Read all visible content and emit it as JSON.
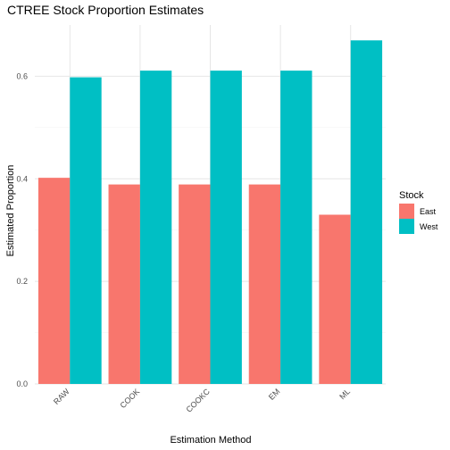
{
  "chart_data": {
    "type": "bar",
    "title": "CTREE Stock Proportion Estimates",
    "xlabel": "Estimation Method",
    "ylabel": "Estimated Proportion",
    "categories": [
      "RAW",
      "COOK",
      "COOKC",
      "EM",
      "ML"
    ],
    "series": [
      {
        "name": "East",
        "color": "#F8766D",
        "values": [
          0.402,
          0.389,
          0.389,
          0.389,
          0.33
        ]
      },
      {
        "name": "West",
        "color": "#00BFC4",
        "values": [
          0.598,
          0.611,
          0.611,
          0.611,
          0.67
        ]
      }
    ],
    "yticks": [
      "0.0",
      "0.2",
      "0.4",
      "0.6"
    ],
    "ylim": [
      0,
      0.7
    ],
    "grid": true,
    "legend": {
      "title": "Stock",
      "position": "right"
    }
  }
}
